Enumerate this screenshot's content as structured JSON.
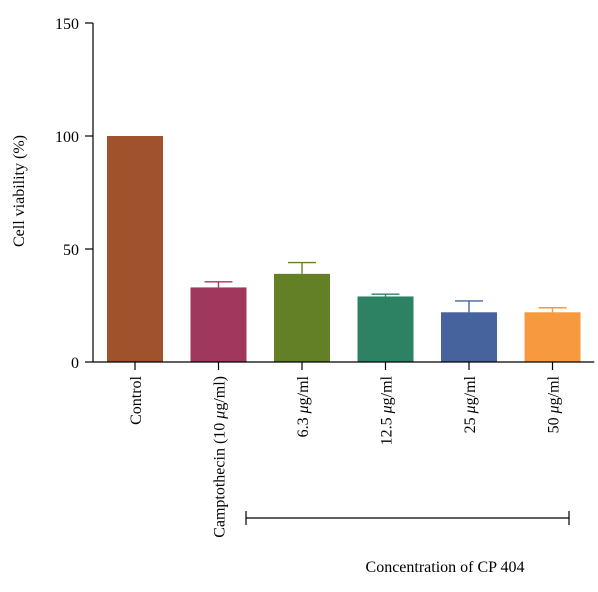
{
  "chart_data": {
    "type": "bar",
    "ylabel": "Cell viability (%)",
    "ylim": [
      0,
      150
    ],
    "yticks": [
      0,
      50,
      100,
      150
    ],
    "categories": [
      [
        "Control"
      ],
      [
        "Camptothecin (10 ",
        "μ",
        "g/ml)"
      ],
      [
        "6.3 ",
        "μ",
        "g/ml"
      ],
      [
        "12.5 ",
        "μ",
        "g/ml"
      ],
      [
        "25 ",
        "μ",
        "g/ml"
      ],
      [
        "50 ",
        "μ",
        "g/ml"
      ]
    ],
    "values": [
      100,
      33,
      39,
      29,
      22,
      22
    ],
    "errors": [
      0,
      2.5,
      5,
      1,
      5,
      2
    ],
    "colors": [
      "#a0522d",
      "#a0385e",
      "#638027",
      "#2d8264",
      "#46639e",
      "#f79a3f"
    ],
    "bracket_label": "Concentration of CP 404",
    "bracket_start_category": 1
  }
}
